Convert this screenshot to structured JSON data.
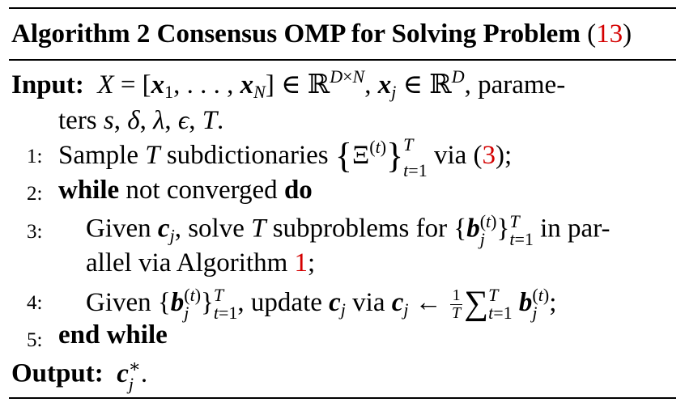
{
  "algorithm": {
    "number_label": "Algorithm 2",
    "title": "Consensus OMP for Solving Problem",
    "problem_ref": "13",
    "input_label": "Input:",
    "input_line1_sym": "X = [x₁, …, x_N] ∈ ℝ^{D×N}, x_j ∈ ℝ^D,",
    "input_line1_text": "parame-",
    "input_line2": "ters s, δ, λ, ϵ, T.",
    "steps": [
      {
        "num": "1:",
        "text": "Sample T subdictionaries {Ξ^(t)}_{t=1}^T via (3);",
        "ref": "3"
      },
      {
        "num": "2:",
        "kw1": "while",
        "text": "not converged",
        "kw2": "do"
      },
      {
        "num": "3:",
        "text_a": "Given c_j, solve T subproblems for {b_j^(t)}_{t=1}^T in par-",
        "text_b": "allel via Algorithm 1;",
        "ref": "1"
      },
      {
        "num": "4:",
        "text": "Given {b_j^(t)}_{t=1}^T, update c_j via c_j ← (1/T) Σ_{t=1}^T b_j^(t);"
      },
      {
        "num": "5:",
        "kw": "end while"
      }
    ],
    "output_label": "Output:",
    "output_text": "c_j^*."
  }
}
